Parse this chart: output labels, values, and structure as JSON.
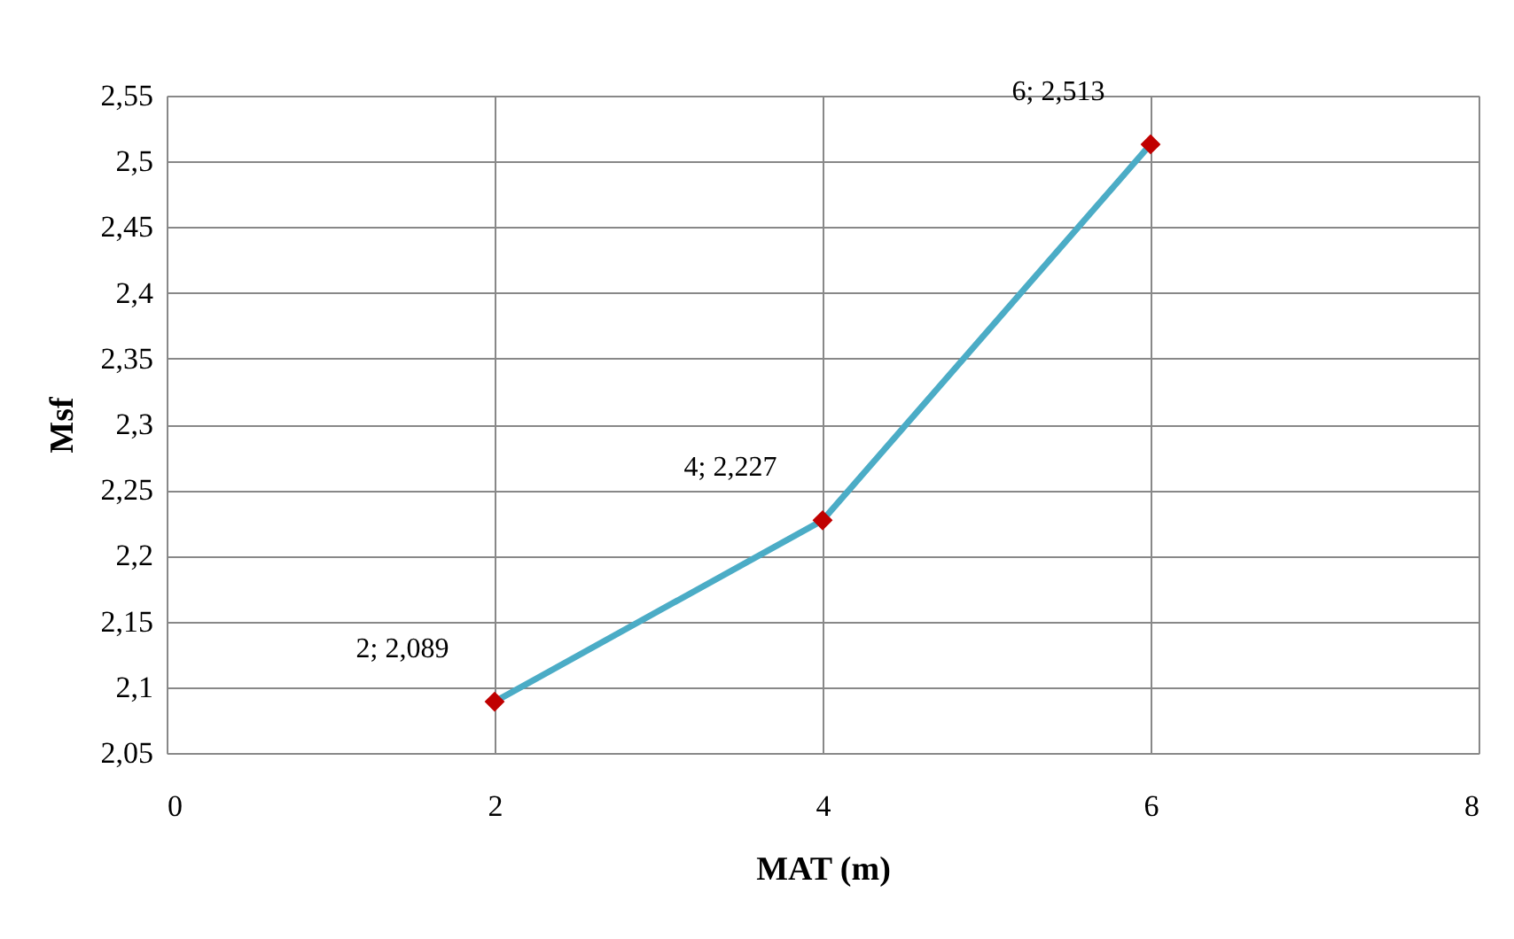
{
  "chart_data": {
    "type": "line",
    "xlabel": "MAT (m)",
    "ylabel": "Msf",
    "x": [
      2,
      4,
      6
    ],
    "series": [
      {
        "color": "#4bacc6",
        "colors": [
          "#c00000",
          "#c00000",
          "#c00000"
        ],
        "values": [
          2.089,
          2.227,
          2.513
        ],
        "value_labels": [
          "2; 2,089",
          "4; 2,227",
          "6; 2,513"
        ]
      }
    ],
    "marker": "diamond",
    "line_style": "solid",
    "grid": true,
    "legend": false,
    "xlim": [
      0,
      8
    ],
    "xticks": [
      0,
      2,
      4,
      6,
      8
    ],
    "ylim": [
      2.05,
      2.55
    ],
    "yticks": [
      {
        "value": 2.05,
        "label": "2,05"
      },
      {
        "value": 2.1,
        "label": "2,1"
      },
      {
        "value": 2.15,
        "label": "2,15"
      },
      {
        "value": 2.2,
        "label": "2,2"
      },
      {
        "value": 2.25,
        "label": "2,25"
      },
      {
        "value": 2.3,
        "label": "2,3"
      },
      {
        "value": 2.35,
        "label": "2,35"
      },
      {
        "value": 2.4,
        "label": "2,4"
      },
      {
        "value": 2.45,
        "label": "2,45"
      },
      {
        "value": 2.5,
        "label": "2,5"
      },
      {
        "value": 2.55,
        "label": "2,55"
      }
    ]
  }
}
